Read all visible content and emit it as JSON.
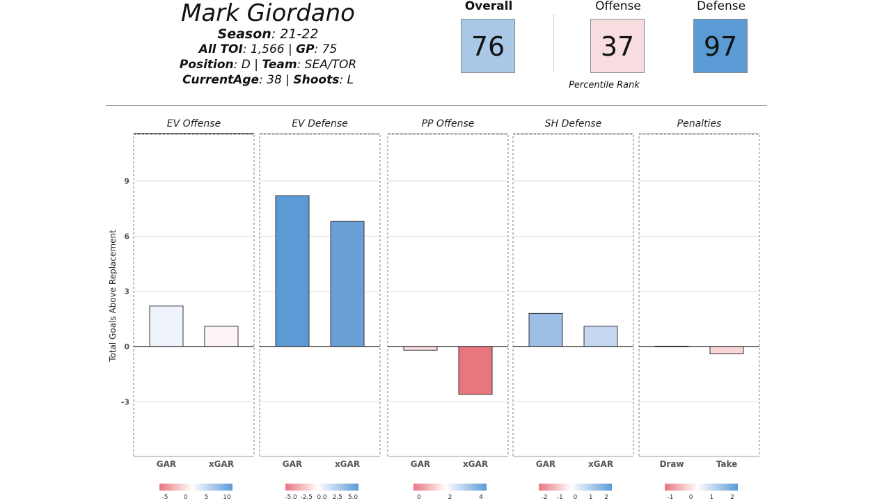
{
  "player": {
    "name": "Mark Giordano",
    "season_label": "Season",
    "season": ": 21-22",
    "toi_label": "All TOI",
    "toi": ": 1,566 | ",
    "gp_label": "GP",
    "gp": ": 75",
    "position_label": "Position",
    "position": ": D | ",
    "team_label": "Team",
    "team": ": SEA/TOR",
    "age_label": "CurrentAge",
    "age": ": 38 | ",
    "shoots_label": "Shoots",
    "shoots": ": L"
  },
  "scores": {
    "overall_label": "Overall",
    "overall": "76",
    "overall_color": "#a9c8e8",
    "offense_label": "Offense",
    "offense": "37",
    "offense_color": "#f8dde0",
    "defense_label": "Defense",
    "defense": "97",
    "defense_color": "#5b9bd5",
    "caption": "Percentile Rank"
  },
  "chart_data": {
    "type": "bar",
    "ylabel": "Total Goals Above Replacement",
    "ylim": [
      -6,
      11.5
    ],
    "yticks": [
      -3,
      0,
      3,
      6,
      9
    ],
    "grid": true,
    "panels": [
      {
        "title": "EV Offense",
        "categories": [
          "GAR",
          "xGAR"
        ],
        "values": [
          2.2,
          1.1
        ],
        "colors": [
          "#eef3fc",
          "#fdf5f5"
        ],
        "legend_ticks": [
          "-5",
          "0",
          "5",
          "10"
        ]
      },
      {
        "title": "EV Defense",
        "categories": [
          "GAR",
          "xGAR"
        ],
        "values": [
          8.2,
          6.8
        ],
        "colors": [
          "#5b9bd5",
          "#6aa0d8"
        ],
        "legend_ticks": [
          "-5.0",
          "-2.5",
          "0.0",
          "2.5",
          "5.0"
        ]
      },
      {
        "title": "PP Offense",
        "categories": [
          "GAR",
          "xGAR"
        ],
        "values": [
          -0.2,
          -2.6
        ],
        "colors": [
          "#f9dfe0",
          "#e8767f"
        ],
        "legend_ticks": [
          "0",
          "2",
          "4"
        ]
      },
      {
        "title": "SH Defense",
        "categories": [
          "GAR",
          "xGAR"
        ],
        "values": [
          1.8,
          1.1
        ],
        "colors": [
          "#9dbee5",
          "#c6d8f1"
        ],
        "legend_ticks": [
          "-2",
          "-1",
          "0",
          "1",
          "2"
        ]
      },
      {
        "title": "Penalties",
        "categories": [
          "Draw",
          "Take"
        ],
        "values": [
          0.02,
          -0.4
        ],
        "colors": [
          "#fdfdfd",
          "#f8d6d8"
        ],
        "legend_ticks": [
          "-1",
          "0",
          "1",
          "2"
        ]
      }
    ]
  }
}
